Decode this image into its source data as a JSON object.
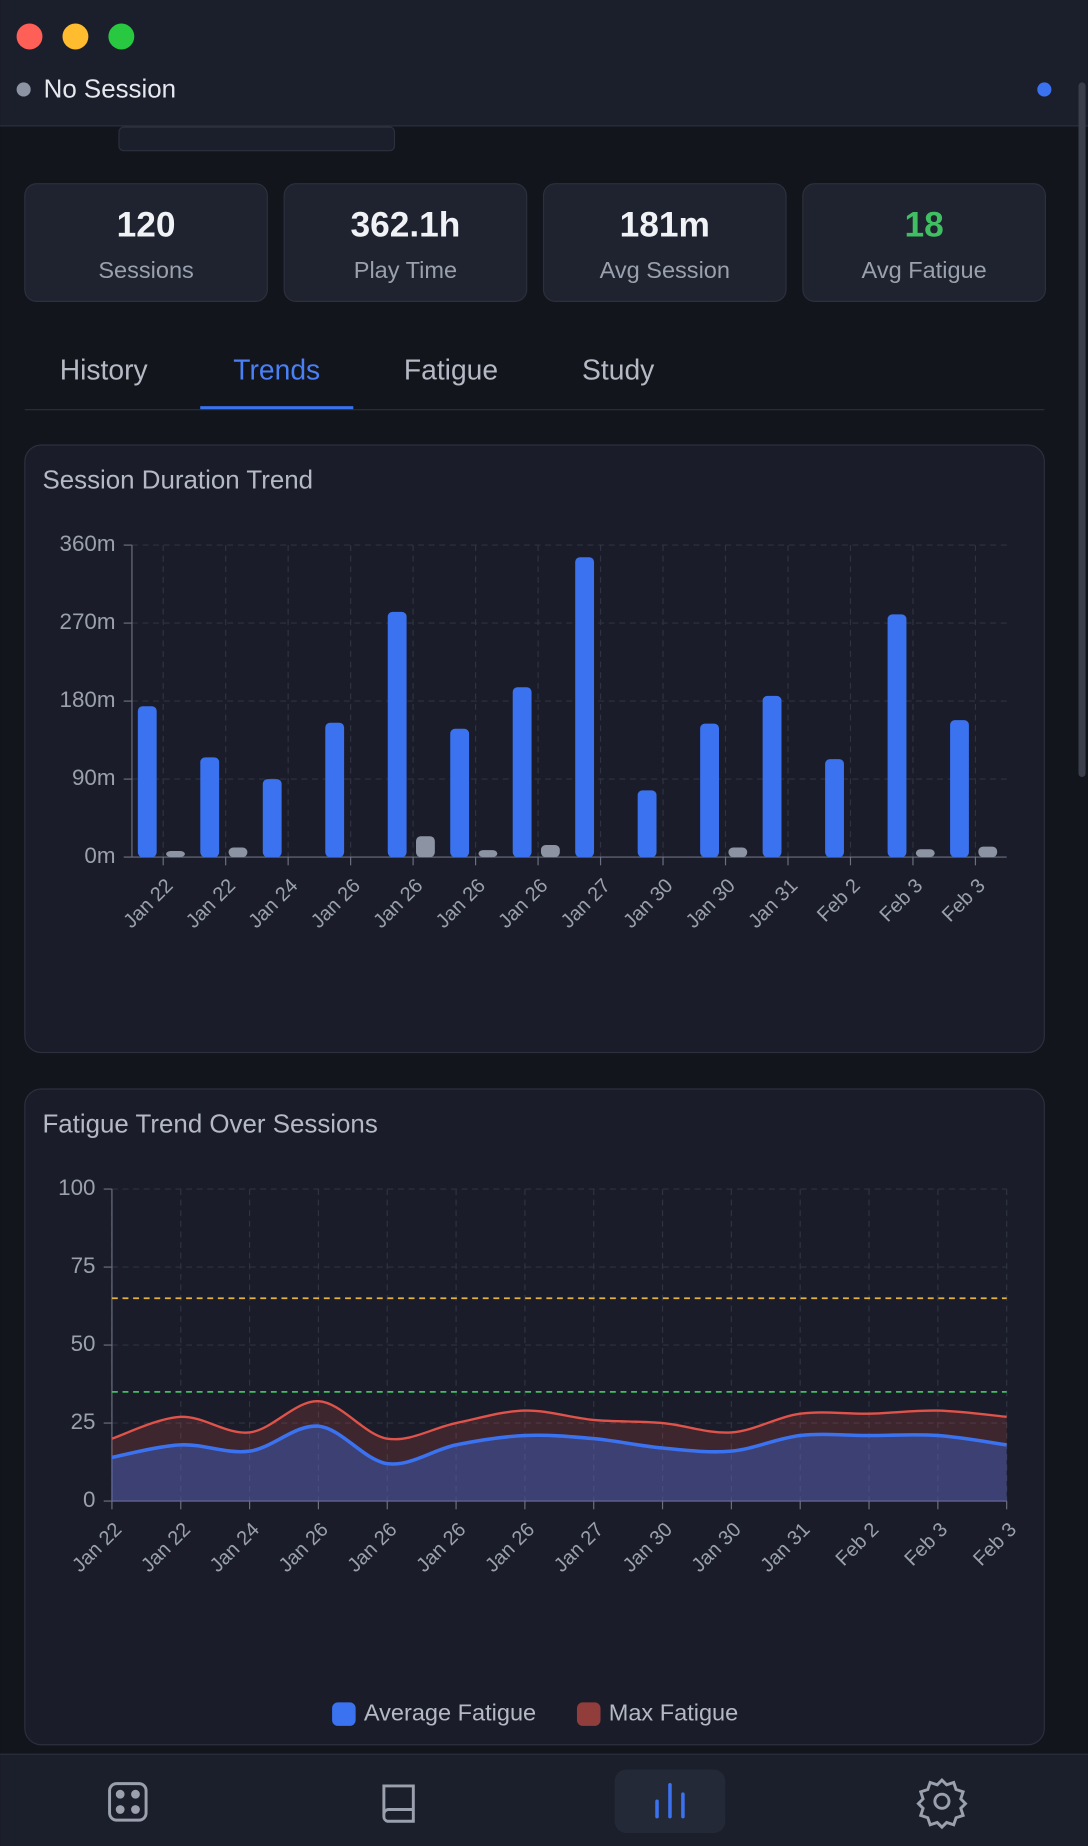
{
  "window": {
    "status": "No Session"
  },
  "stats": [
    {
      "value": 120,
      "label": "Sessions"
    },
    {
      "value": "362.1h",
      "label": "Play Time"
    },
    {
      "value": "181m",
      "label": "Avg Session"
    },
    {
      "value": 18,
      "label": "Avg Fatigue"
    }
  ],
  "tabs": {
    "items": [
      "History",
      "Trends",
      "Fatigue",
      "Study"
    ],
    "active": 1
  },
  "chart_data": [
    {
      "type": "bar",
      "title": "Session Duration Trend",
      "categories": [
        "Jan 22",
        "Jan 22",
        "Jan 24",
        "Jan 26",
        "Jan 26",
        "Jan 26",
        "Jan 26",
        "Jan 27",
        "Jan 30",
        "Jan 30",
        "Jan 31",
        "Feb 2",
        "Feb 3",
        "Feb 3"
      ],
      "series": [
        {
          "color": "#3b72f0",
          "values": [
            174,
            115,
            90,
            155,
            283,
            148,
            196,
            346,
            77,
            154,
            186,
            113,
            280,
            158
          ]
        },
        {
          "color": "#8c93a3",
          "values": [
            7,
            11,
            0,
            0,
            24,
            8,
            14,
            0,
            0,
            11,
            0,
            0,
            9,
            12
          ]
        }
      ],
      "ylim": [
        0,
        360
      ],
      "yticks": [
        {
          "value": 0,
          "label": "0m"
        },
        {
          "value": 90,
          "label": "90m"
        },
        {
          "value": 180,
          "label": "180m"
        },
        {
          "value": 270,
          "label": "270m"
        },
        {
          "value": 360,
          "label": "360m"
        }
      ],
      "grid": true
    },
    {
      "type": "area",
      "title": "Fatigue Trend Over Sessions",
      "categories": [
        "Jan 22",
        "Jan 22",
        "Jan 24",
        "Jan 26",
        "Jan 26",
        "Jan 26",
        "Jan 26",
        "Jan 27",
        "Jan 30",
        "Jan 30",
        "Jan 31",
        "Feb 2",
        "Feb 3",
        "Feb 3"
      ],
      "series": [
        {
          "name": "Average Fatigue",
          "color": "#3b72f0",
          "values": [
            14,
            18,
            16,
            24,
            12,
            18,
            21,
            20,
            17,
            16,
            21,
            21,
            21,
            18
          ]
        },
        {
          "name": "Max Fatigue",
          "color": "#e0534a",
          "values": [
            20,
            27,
            22,
            32,
            20,
            25,
            29,
            26,
            25,
            22,
            28,
            28,
            29,
            27
          ]
        }
      ],
      "ylim": [
        0,
        100
      ],
      "yticks": [
        0,
        25,
        50,
        75,
        100
      ],
      "grid": true,
      "reference_lines": [
        {
          "value": 65,
          "color": "#e5b33c"
        },
        {
          "value": 35,
          "color": "#3fbf62"
        }
      ],
      "legend": "bottom"
    }
  ]
}
